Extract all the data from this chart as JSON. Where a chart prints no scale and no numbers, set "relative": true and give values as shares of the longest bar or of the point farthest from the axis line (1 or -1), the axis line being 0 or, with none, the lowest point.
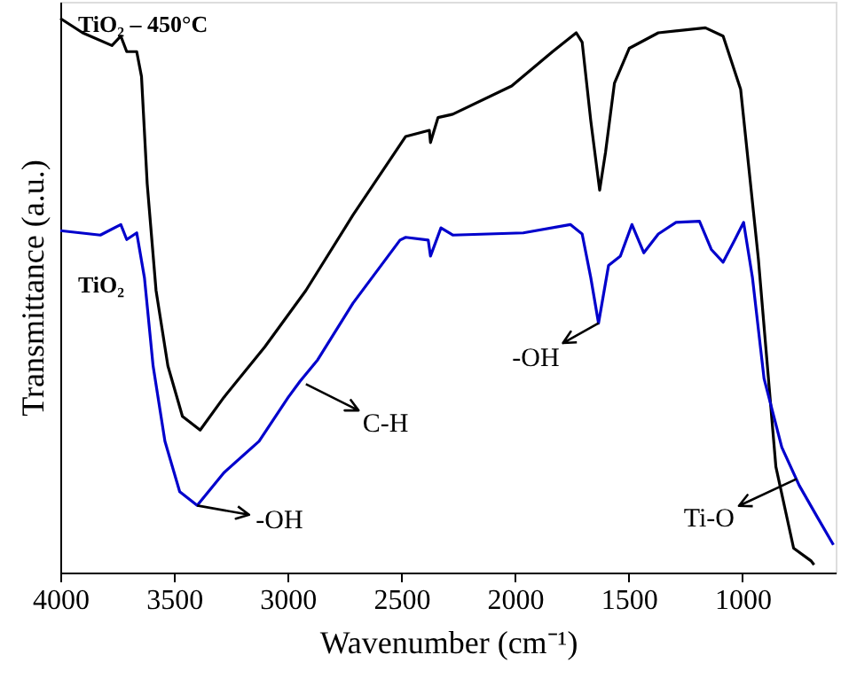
{
  "chart_data": {
    "type": "line",
    "relative": true,
    "xlabel": "Wavenumber (cm⁻¹)",
    "ylabel": "Transmittance (a.u.)",
    "xlim": [
      4000,
      590
    ],
    "xticks": [
      4000,
      3500,
      3000,
      2500,
      2000,
      1500,
      1000
    ],
    "grid": false,
    "line_style": "solid",
    "marker": "none",
    "series": [
      {
        "name": "TiO₂ – 450°C",
        "color": "#000000",
        "x": [
          4000,
          3902,
          3773,
          3734,
          3708,
          3664,
          3643,
          3618,
          3579,
          3527,
          3463,
          3385,
          3281,
          3101,
          2920,
          2713,
          2481,
          2377,
          2372,
          2339,
          2274,
          2015,
          1835,
          1731,
          1705,
          1667,
          1628,
          1602,
          1563,
          1498,
          1370,
          1163,
          1085,
          1008,
          930,
          853,
          775,
          698,
          685
        ],
        "values": [
          1.0,
          0.974,
          0.951,
          0.968,
          0.94,
          0.94,
          0.895,
          0.702,
          0.509,
          0.373,
          0.282,
          0.257,
          0.316,
          0.407,
          0.509,
          0.645,
          0.787,
          0.798,
          0.776,
          0.821,
          0.827,
          0.878,
          0.94,
          0.974,
          0.957,
          0.815,
          0.69,
          0.759,
          0.883,
          0.946,
          0.974,
          0.983,
          0.968,
          0.872,
          0.566,
          0.191,
          0.044,
          0.021,
          0.014
        ]
      },
      {
        "name": "TiO₂",
        "color": "#0000cc",
        "x": [
          4000,
          3824,
          3734,
          3708,
          3664,
          3630,
          3592,
          3540,
          3475,
          3398,
          3281,
          3126,
          2998,
          2946,
          2868,
          2713,
          2506,
          2481,
          2382,
          2372,
          2326,
          2274,
          1964,
          1757,
          1705,
          1667,
          1633,
          1589,
          1537,
          1486,
          1434,
          1370,
          1292,
          1189,
          1137,
          1085,
          1034,
          995,
          956,
          905,
          827,
          750,
          672,
          600
        ],
        "values": [
          0.617,
          0.609,
          0.628,
          0.601,
          0.613,
          0.532,
          0.373,
          0.237,
          0.146,
          0.121,
          0.18,
          0.237,
          0.316,
          0.345,
          0.384,
          0.486,
          0.6,
          0.605,
          0.6,
          0.571,
          0.622,
          0.609,
          0.613,
          0.628,
          0.611,
          0.532,
          0.45,
          0.554,
          0.571,
          0.628,
          0.577,
          0.611,
          0.632,
          0.634,
          0.583,
          0.56,
          0.6,
          0.632,
          0.532,
          0.35,
          0.226,
          0.157,
          0.101,
          0.05
        ]
      }
    ],
    "annotations": [
      {
        "text": "-OH",
        "x": 3398,
        "y": 0.121
      },
      {
        "text": "C-H",
        "x": 2920,
        "y": 0.34
      },
      {
        "text": "-OH",
        "x": 1633,
        "y": 0.45
      },
      {
        "text": "Ti-O",
        "x": 762,
        "y": 0.169
      }
    ]
  }
}
